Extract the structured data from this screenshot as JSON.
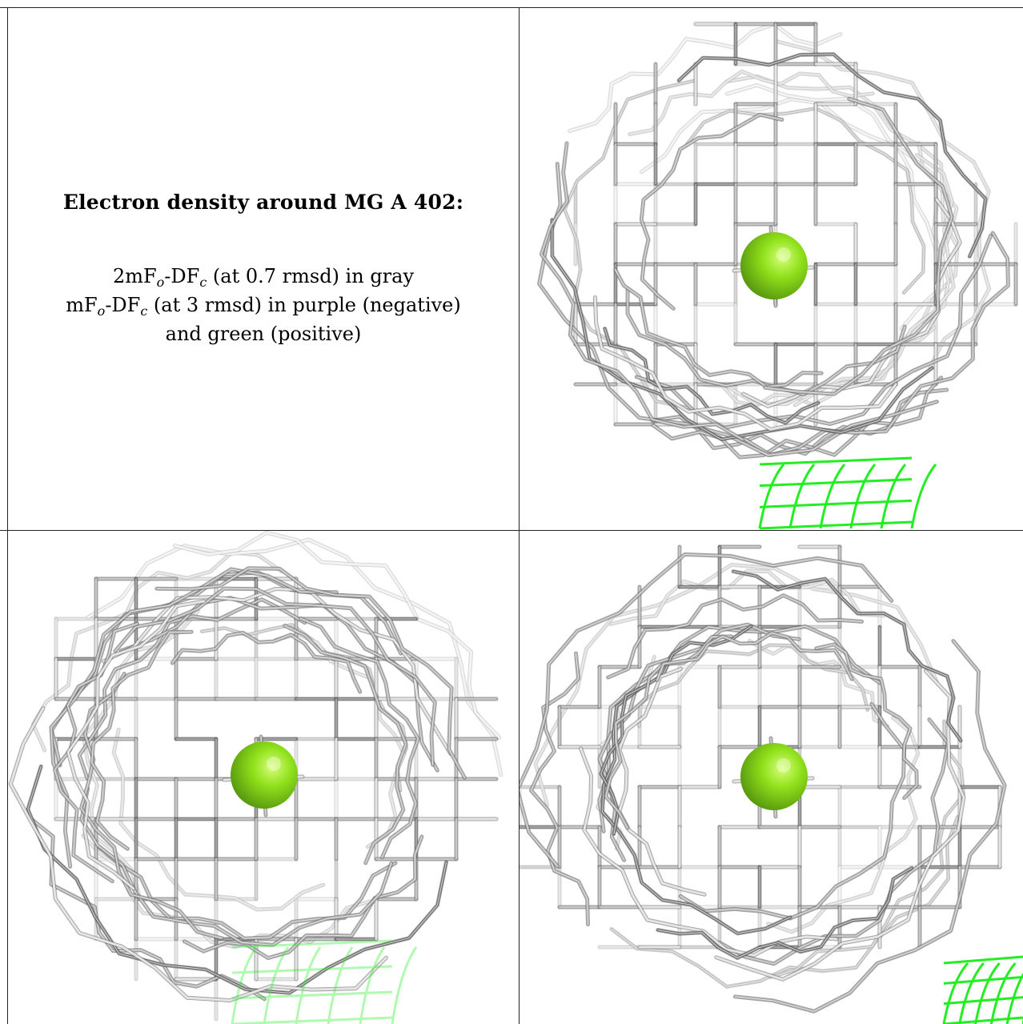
{
  "caption": {
    "title": "Electron density around MG A 402:",
    "map1": {
      "name": "2mF",
      "sub1": "o",
      "mid": "-DF",
      "sub2": "c",
      "desc": " (at 0.7 rmsd) in gray"
    },
    "map2": {
      "name": "mF",
      "sub1": "o",
      "mid": "-DF",
      "sub2": "c",
      "desc": " (at 3 rmsd) in purple (negative)"
    },
    "map2_cont": "and green (positive)"
  },
  "colors": {
    "mesh_light": "#d9d9d9",
    "mesh_mid": "#a9a9a9",
    "mesh_dark": "#6e6e6e",
    "ion": "#8fe01a",
    "ion_highlight": "#d6ff7a",
    "positive_density": "#22ee22"
  },
  "panels": [
    {
      "name": "view-1",
      "ion": "MG"
    },
    {
      "name": "view-2",
      "ion": "MG"
    },
    {
      "name": "view-3",
      "ion": "MG"
    }
  ]
}
